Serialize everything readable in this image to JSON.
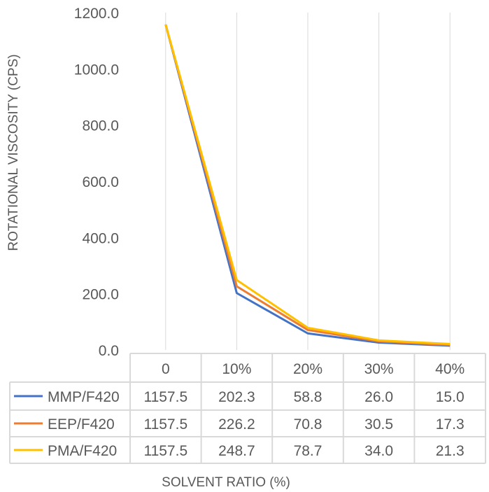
{
  "chart_data": {
    "type": "line",
    "title": "",
    "xlabel": "SOLVENT RATIO (%)",
    "ylabel": "ROTATIONAL VISCOSITY (CPS)",
    "categories": [
      "0",
      "10%",
      "20%",
      "30%",
      "40%"
    ],
    "ylim": [
      0,
      1200
    ],
    "yticks": [
      "0.0",
      "200.0",
      "400.0",
      "600.0",
      "800.0",
      "1000.0",
      "1200.0"
    ],
    "grid": "vertical at categories",
    "legend": "data table",
    "series": [
      {
        "name": "MMP/F420",
        "color": "#4472C4",
        "values": [
          1157.5,
          202.3,
          58.8,
          26.0,
          15.0
        ],
        "labels": [
          "1157.5",
          "202.3",
          "58.8",
          "26.0",
          "15.0"
        ]
      },
      {
        "name": "EEP/F420",
        "color": "#ED7D31",
        "values": [
          1157.5,
          226.2,
          70.8,
          30.5,
          17.3
        ],
        "labels": [
          "1157.5",
          "226.2",
          "70.8",
          "30.5",
          "17.3"
        ]
      },
      {
        "name": "PMA/F420",
        "color": "#FFC000",
        "values": [
          1157.5,
          248.7,
          78.7,
          34.0,
          21.3
        ],
        "labels": [
          "1157.5",
          "248.7",
          "78.7",
          "34.0",
          "21.3"
        ]
      }
    ]
  }
}
